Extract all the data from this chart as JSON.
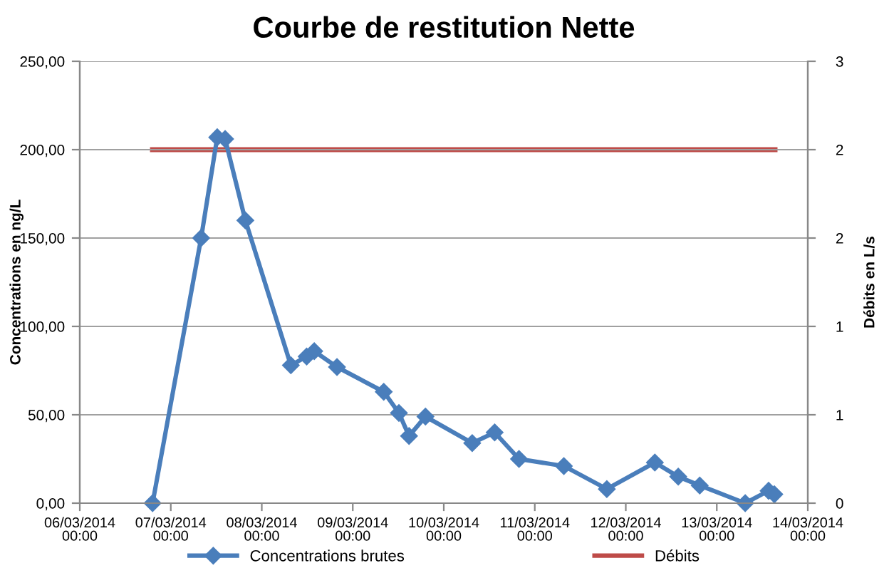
{
  "chart_data": {
    "type": "line",
    "title": "Courbe de restitution Nette",
    "ylabel": "Concentrations en ng/L",
    "y2label": "Débits en L/s",
    "series": [
      {
        "name": "Concentrations brutes",
        "color": "#4a7ebb",
        "marker": "diamond",
        "x": [
          "2014-03-06T19:12",
          "2014-03-07T08:00",
          "2014-03-07T12:15",
          "2014-03-07T14:20",
          "2014-03-07T19:40",
          "2014-03-08T07:40",
          "2014-03-08T11:50",
          "2014-03-08T13:50",
          "2014-03-08T19:50",
          "2014-03-09T08:10",
          "2014-03-09T12:10",
          "2014-03-09T14:50",
          "2014-03-09T19:10",
          "2014-03-10T07:30",
          "2014-03-10T13:25",
          "2014-03-10T19:50",
          "2014-03-11T07:40",
          "2014-03-11T19:00",
          "2014-03-12T07:40",
          "2014-03-12T13:50",
          "2014-03-12T19:30",
          "2014-03-13T07:30",
          "2014-03-13T13:40",
          "2014-03-13T15:10"
        ],
        "values": [
          0,
          150,
          207,
          206,
          160,
          78,
          83,
          86,
          77,
          63,
          51,
          38,
          49,
          34,
          40,
          25,
          21,
          8,
          23,
          15,
          10,
          0,
          7,
          5
        ]
      },
      {
        "name": "Débits",
        "color": "#be4b48",
        "marker": "none",
        "axis": "y2",
        "x": [
          "2014-03-06T19:12",
          "2014-03-13T15:20"
        ],
        "values": [
          2.4,
          2.4
        ]
      }
    ],
    "xlim": [
      "2014-03-06T00:00",
      "2014-03-14T00:00"
    ],
    "xticks": [
      {
        "value": "2014-03-06T00:00",
        "label": "06/03/2014 00:00"
      },
      {
        "value": "2014-03-07T00:00",
        "label": "07/03/2014 00:00"
      },
      {
        "value": "2014-03-08T00:00",
        "label": "08/03/2014 00:00"
      },
      {
        "value": "2014-03-09T00:00",
        "label": "09/03/2014 00:00"
      },
      {
        "value": "2014-03-10T00:00",
        "label": "10/03/2014 00:00"
      },
      {
        "value": "2014-03-11T00:00",
        "label": "11/03/2014 00:00"
      },
      {
        "value": "2014-03-12T00:00",
        "label": "12/03/2014 00:00"
      },
      {
        "value": "2014-03-13T00:00",
        "label": "13/03/2014 00:00"
      },
      {
        "value": "2014-03-14T00:00",
        "label": "14/03/2014 00:00"
      }
    ],
    "ylim": [
      0,
      250
    ],
    "yticks": [
      {
        "value": 0,
        "label": "0,00"
      },
      {
        "value": 50,
        "label": "50,00"
      },
      {
        "value": 100,
        "label": "100,00"
      },
      {
        "value": 150,
        "label": "150,00"
      },
      {
        "value": 200,
        "label": "200,00"
      },
      {
        "value": 250,
        "label": "250,00"
      }
    ],
    "y2lim": [
      0,
      3
    ],
    "y2ticks": [
      0,
      {
        "value": 0.6,
        "label": "1"
      },
      {
        "value": 1.2,
        "label": "1"
      },
      {
        "value": 1.8,
        "label": "2"
      },
      {
        "value": 2.4,
        "label": "2"
      },
      3
    ],
    "grid": "y",
    "legend": "bottom",
    "line_style": "solid"
  }
}
